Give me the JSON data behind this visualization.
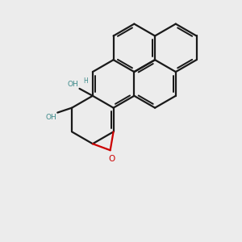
{
  "background_color": "#ececec",
  "bond_color": "#1a1a1a",
  "oh_color": "#3a8888",
  "epoxide_color": "#cc0000",
  "line_width": 1.6,
  "figsize": [
    3.0,
    3.0
  ],
  "dpi": 100,
  "xlim": [
    0,
    10
  ],
  "ylim": [
    0,
    10
  ]
}
